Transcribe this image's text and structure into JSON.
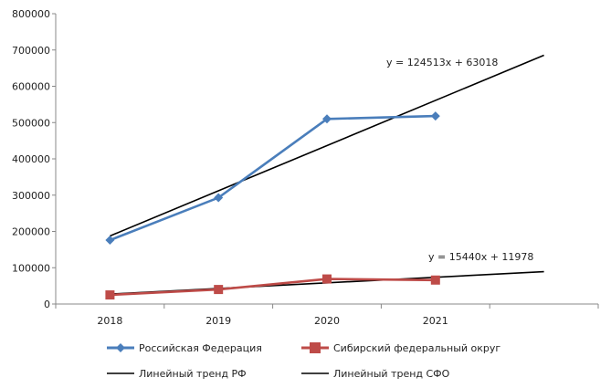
{
  "chart_data": {
    "type": "line",
    "categories": [
      "2018",
      "2019",
      "2020",
      "2021"
    ],
    "y_ticks": [
      "0",
      "100000",
      "200000",
      "300000",
      "400000",
      "500000",
      "600000",
      "700000",
      "800000"
    ],
    "ylim": [
      0,
      800000
    ],
    "grid": false,
    "legend_position": "bottom",
    "series": [
      {
        "name": "Российская Федерация",
        "values": [
          176000,
          293000,
          510000,
          518000
        ],
        "color": "#4a7ebb",
        "marker": "diamond"
      },
      {
        "name": "Сибирский федеральный округ",
        "values": [
          25000,
          40000,
          69000,
          66000
        ],
        "color": "#be4b48",
        "marker": "square"
      }
    ],
    "trendlines": [
      {
        "name": "Линейный тренд РФ",
        "equation": "y = 124513x + 63018",
        "slope": 124513,
        "intercept": 63018,
        "x_range": [
          1,
          5
        ],
        "color": "#000000"
      },
      {
        "name": "Линейный тренд СФО",
        "equation": "y = 15440x + 11978",
        "slope": 15440,
        "intercept": 11978,
        "x_range": [
          1,
          5
        ],
        "color": "#000000"
      }
    ]
  }
}
